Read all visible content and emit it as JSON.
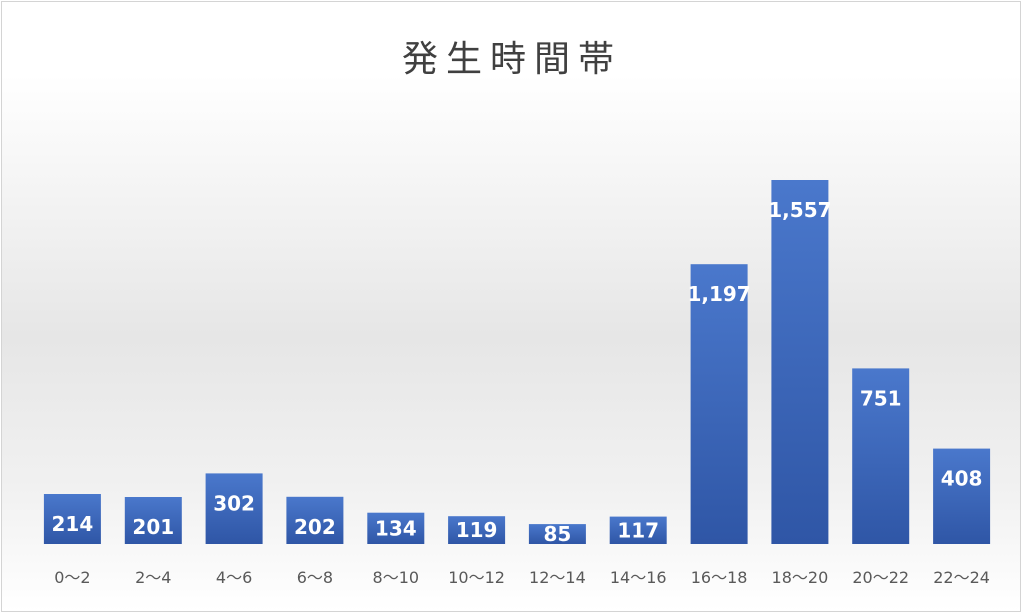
{
  "chart_data": {
    "type": "bar",
    "title": "発生時間帯",
    "categories": [
      "0〜2",
      "2〜4",
      "4〜6",
      "6〜8",
      "8〜10",
      "10〜12",
      "12〜14",
      "14〜16",
      "16〜18",
      "18〜20",
      "20〜22",
      "22〜24"
    ],
    "values": [
      214,
      201,
      302,
      202,
      134,
      119,
      85,
      117,
      1197,
      1557,
      751,
      408
    ],
    "value_labels": [
      "214",
      "201",
      "302",
      "202",
      "134",
      "119",
      "85",
      "117",
      "1,197",
      "1,557",
      "751",
      "408"
    ],
    "xlabel": "",
    "ylabel": "",
    "ylim": [
      0,
      1600
    ],
    "grid": false,
    "legend": "none",
    "colors": {
      "bar": "#3d68bf",
      "bar_dark": "#2f56a6",
      "label": "#ffffff",
      "tick": "#595959"
    }
  }
}
